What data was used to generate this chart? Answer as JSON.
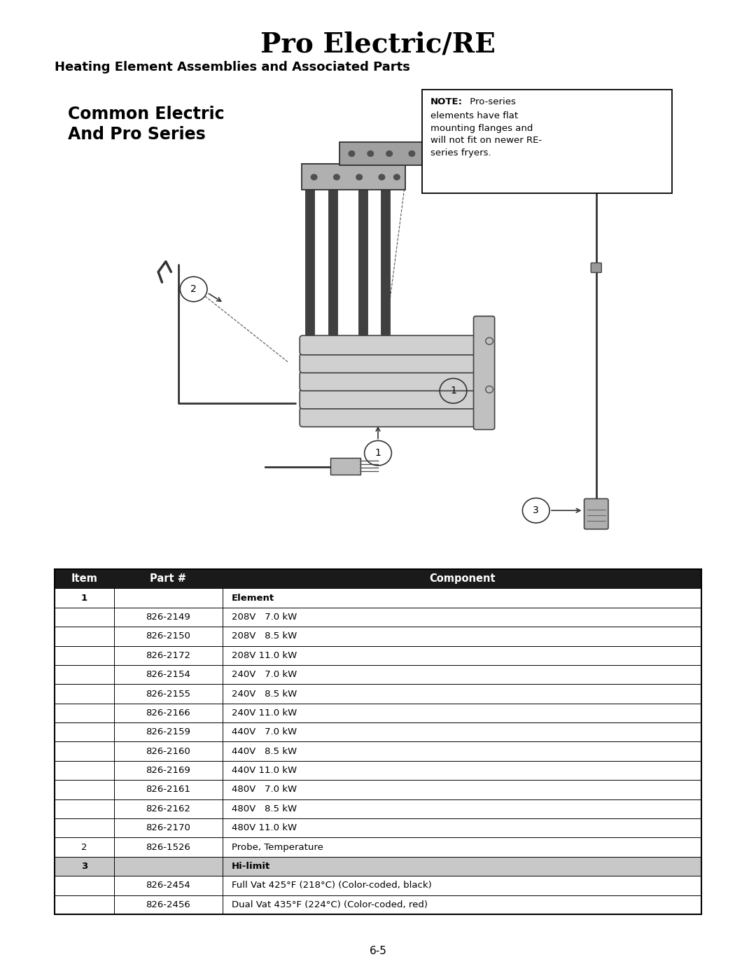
{
  "title": "Pro Electric/RE",
  "subtitle": "Heating Element Assemblies and Associated Parts",
  "page_number": "6-5",
  "table_header": [
    "Item",
    "Part #",
    "Component"
  ],
  "table_rows": [
    [
      "1",
      "",
      "Element"
    ],
    [
      "",
      "826-2149",
      "208V   7.0 kW"
    ],
    [
      "",
      "826-2150",
      "208V   8.5 kW"
    ],
    [
      "",
      "826-2172",
      "208V 11.0 kW"
    ],
    [
      "",
      "826-2154",
      "240V   7.0 kW"
    ],
    [
      "",
      "826-2155",
      "240V   8.5 kW"
    ],
    [
      "",
      "826-2166",
      "240V 11.0 kW"
    ],
    [
      "",
      "826-2159",
      "440V   7.0 kW"
    ],
    [
      "",
      "826-2160",
      "440V   8.5 kW"
    ],
    [
      "",
      "826-2169",
      "440V 11.0 kW"
    ],
    [
      "",
      "826-2161",
      "480V   7.0 kW"
    ],
    [
      "",
      "826-2162",
      "480V   8.5 kW"
    ],
    [
      "",
      "826-2170",
      "480V 11.0 kW"
    ],
    [
      "2",
      "826-1526",
      "Probe, Temperature"
    ],
    [
      "3",
      "",
      "Hi-limit"
    ],
    [
      "",
      "826-2454",
      "Full Vat 425°F (218°C) (Color-coded, black)"
    ],
    [
      "",
      "826-2456",
      "Dual Vat 435°F (224°C) (Color-coded, red)"
    ]
  ],
  "header_bg": "#1a1a1a",
  "header_fg": "#ffffff",
  "row_shaded_bg": "#c8c8c8",
  "row_bg": "#ffffff",
  "bold_rows": [
    0,
    14
  ],
  "shaded_rows": [
    14
  ],
  "bg_color": "#ffffff"
}
